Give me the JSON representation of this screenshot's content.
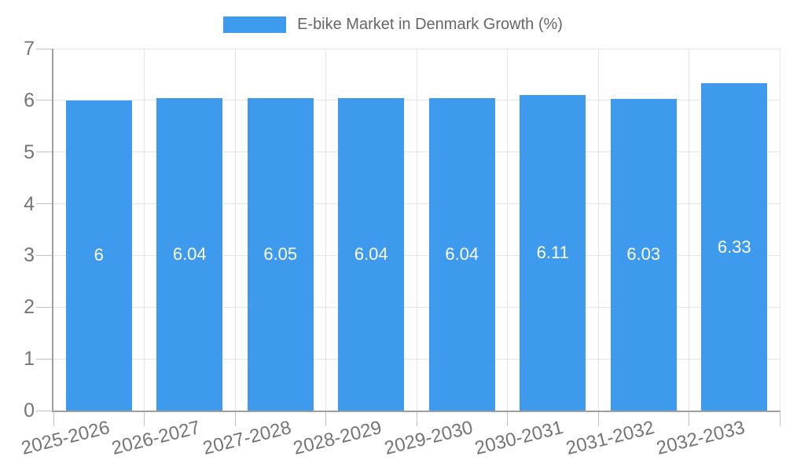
{
  "chart_data": {
    "type": "bar",
    "title": "E-bike Market in Denmark Growth (%)",
    "categories": [
      "2025-2026",
      "2026-2027",
      "2027-2028",
      "2028-2029",
      "2029-2030",
      "2030-2031",
      "2031-2032",
      "2032-2033"
    ],
    "values": [
      6,
      6.04,
      6.05,
      6.04,
      6.04,
      6.11,
      6.03,
      6.33
    ],
    "data_labels": [
      "6",
      "6.04",
      "6.05",
      "6.04",
      "6.04",
      "6.11",
      "6.03",
      "6.33"
    ],
    "xlabel": "",
    "ylabel": "",
    "ylim": [
      0,
      7
    ],
    "y_ticks": [
      0,
      1,
      2,
      3,
      4,
      5,
      6,
      7
    ],
    "grid": true,
    "legend_position": "top"
  },
  "colors": {
    "bar": "#3E9AEC",
    "grid": "#E5E5E5",
    "tick": "#C2C2C2",
    "axis": "#9E9E9E",
    "axis_text": "#757575",
    "title_text": "#666666",
    "value_label": "#FFFFFF",
    "background": "#FFFFFF"
  }
}
